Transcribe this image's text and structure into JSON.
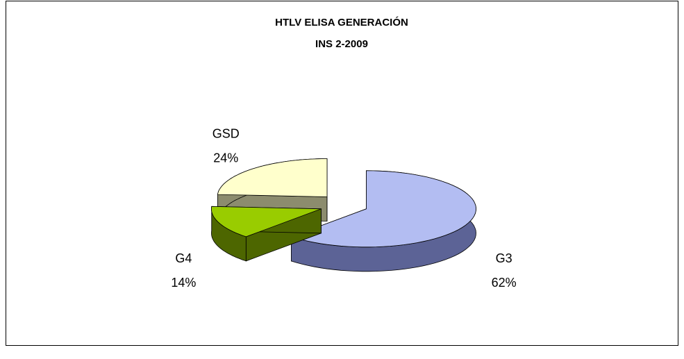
{
  "chart_data": {
    "type": "pie",
    "title": "HTLV  ELISA GENERACIÓN",
    "subtitle": "INS 2-2009",
    "categories": [
      "G3",
      "G4",
      "GSD"
    ],
    "values": [
      62,
      14,
      24
    ],
    "value_labels": [
      "62%",
      "14%",
      "24%"
    ],
    "colors": [
      "#b3bdf2",
      "#99cc00",
      "#ffffcc"
    ],
    "side_colors": [
      "#5c6396",
      "#4d6600",
      "#8c8c6e"
    ]
  }
}
